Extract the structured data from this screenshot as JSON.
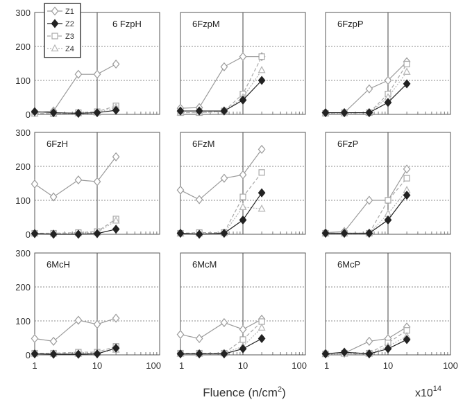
{
  "chart_data": {
    "type": "line",
    "layout": "3x3 small multiples",
    "x_scale": "log",
    "xlim": [
      1,
      100
    ],
    "ylim": [
      0,
      300
    ],
    "x_ticks": [
      "1",
      "10",
      "100"
    ],
    "y_ticks": [
      "0",
      "100",
      "200",
      "300"
    ],
    "xlabel": "Fluence (n/cm2)",
    "xlabel_main": "Fluence (n/cm",
    "xlabel_sup": "2",
    "xlabel_close": ")",
    "x_multiplier_base": "x10",
    "x_multiplier_exp": "14",
    "grid": "dotted horizontal at 100 and 200, solid vertical at 10",
    "legend": {
      "placement": "top-left of first panel",
      "entries": [
        {
          "name": "Z1",
          "marker": "diamond-open",
          "color": "#9a9a9a",
          "dash": ""
        },
        {
          "name": "Z2",
          "marker": "diamond-filled",
          "color": "#222222",
          "dash": ""
        },
        {
          "name": "Z3",
          "marker": "square-open",
          "color": "#a8a8a8",
          "dash": "5,3"
        },
        {
          "name": "Z4",
          "marker": "triangle-open",
          "color": "#b4b4b4",
          "dash": "2,2"
        }
      ]
    },
    "panels": [
      {
        "label": "6 FzpH",
        "series": {
          "Z1": {
            "x": [
              1,
              2,
              5,
              10,
              20
            ],
            "y": [
              5,
              10,
              118,
              118,
              148
            ]
          },
          "Z2": {
            "x": [
              1,
              2,
              5,
              10,
              20
            ],
            "y": [
              8,
              5,
              3,
              5,
              12
            ]
          },
          "Z3": {
            "x": [
              1,
              2,
              5,
              10,
              20
            ],
            "y": [
              3,
              2,
              5,
              8,
              25
            ]
          },
          "Z4": {
            "x": [
              1,
              2,
              5,
              10,
              20
            ],
            "y": [
              2,
              2,
              3,
              5,
              20
            ]
          }
        }
      },
      {
        "label": "6FzpM",
        "series": {
          "Z1": {
            "x": [
              1,
              2,
              5,
              10,
              20
            ],
            "y": [
              18,
              20,
              140,
              170,
              170
            ]
          },
          "Z2": {
            "x": [
              1,
              2,
              5,
              10,
              20
            ],
            "y": [
              10,
              10,
              10,
              42,
              100
            ]
          },
          "Z3": {
            "x": [
              1,
              2,
              5,
              10,
              20
            ],
            "y": [
              5,
              5,
              10,
              60,
              170
            ]
          },
          "Z4": {
            "x": [
              1,
              2,
              5,
              10,
              20
            ],
            "y": [
              5,
              5,
              8,
              50,
              130
            ]
          }
        }
      },
      {
        "label": "6FzpP",
        "series": {
          "Z1": {
            "x": [
              1,
              2,
              5,
              10,
              20
            ],
            "y": [
              5,
              5,
              75,
              100,
              155
            ]
          },
          "Z2": {
            "x": [
              1,
              2,
              5,
              10,
              20
            ],
            "y": [
              5,
              5,
              5,
              35,
              90
            ]
          },
          "Z3": {
            "x": [
              1,
              2,
              5,
              10,
              20
            ],
            "y": [
              3,
              5,
              5,
              60,
              148
            ]
          },
          "Z4": {
            "x": [
              1,
              2,
              5,
              10,
              20
            ],
            "y": [
              3,
              3,
              5,
              50,
              125
            ]
          }
        }
      },
      {
        "label": "6FzH",
        "series": {
          "Z1": {
            "x": [
              1,
              2,
              5,
              10,
              20
            ],
            "y": [
              148,
              110,
              160,
              155,
              228
            ]
          },
          "Z2": {
            "x": [
              1,
              2,
              5,
              10,
              20
            ],
            "y": [
              2,
              0,
              0,
              2,
              15
            ]
          },
          "Z3": {
            "x": [
              1,
              2,
              5,
              10,
              20
            ],
            "y": [
              3,
              3,
              5,
              8,
              45
            ]
          },
          "Z4": {
            "x": [
              1,
              2,
              5,
              10,
              20
            ],
            "y": [
              2,
              2,
              3,
              5,
              40
            ]
          }
        }
      },
      {
        "label": "6FzM",
        "series": {
          "Z1": {
            "x": [
              1,
              2,
              5,
              10,
              20
            ],
            "y": [
              130,
              102,
              165,
              175,
              250
            ]
          },
          "Z2": {
            "x": [
              1,
              2,
              5,
              10,
              20
            ],
            "y": [
              3,
              0,
              3,
              42,
              122
            ]
          },
          "Z3": {
            "x": [
              1,
              2,
              5,
              10,
              20
            ],
            "y": [
              3,
              5,
              5,
              110,
              182
            ]
          },
          "Z4": {
            "x": [
              1,
              2,
              5,
              10,
              20
            ],
            "y": [
              2,
              2,
              3,
              80,
              75
            ]
          }
        }
      },
      {
        "label": "6FzP",
        "series": {
          "Z1": {
            "x": [
              1,
              2,
              5,
              10,
              20
            ],
            "y": [
              5,
              8,
              100,
              100,
              192
            ]
          },
          "Z2": {
            "x": [
              1,
              2,
              5,
              10,
              20
            ],
            "y": [
              3,
              3,
              3,
              42,
              115
            ]
          },
          "Z3": {
            "x": [
              1,
              2,
              5,
              10,
              20
            ],
            "y": [
              3,
              3,
              3,
              100,
              165
            ]
          },
          "Z4": {
            "x": [
              1,
              2,
              5,
              10,
              20
            ],
            "y": [
              2,
              2,
              3,
              60,
              130
            ]
          }
        }
      },
      {
        "label": "6McH",
        "series": {
          "Z1": {
            "x": [
              1,
              2,
              5,
              10,
              20
            ],
            "y": [
              48,
              40,
              102,
              90,
              108
            ]
          },
          "Z2": {
            "x": [
              1,
              2,
              5,
              10,
              20
            ],
            "y": [
              3,
              2,
              2,
              3,
              20
            ]
          },
          "Z3": {
            "x": [
              1,
              2,
              5,
              10,
              20
            ],
            "y": [
              5,
              5,
              8,
              8,
              25
            ]
          },
          "Z4": {
            "x": [
              1,
              2,
              5,
              10,
              20
            ],
            "y": [
              3,
              3,
              3,
              5,
              15
            ]
          }
        }
      },
      {
        "label": "6McM",
        "series": {
          "Z1": {
            "x": [
              1,
              2,
              5,
              10,
              20
            ],
            "y": [
              60,
              48,
              95,
              75,
              105
            ]
          },
          "Z2": {
            "x": [
              1,
              2,
              5,
              10,
              20
            ],
            "y": [
              3,
              3,
              3,
              18,
              48
            ]
          },
          "Z3": {
            "x": [
              1,
              2,
              5,
              10,
              20
            ],
            "y": [
              5,
              5,
              5,
              45,
              98
            ]
          },
          "Z4": {
            "x": [
              1,
              2,
              5,
              10,
              20
            ],
            "y": [
              3,
              3,
              5,
              25,
              80
            ]
          }
        }
      },
      {
        "label": "6McP",
        "series": {
          "Z1": {
            "x": [
              1,
              2,
              5,
              10,
              20
            ],
            "y": [
              5,
              5,
              40,
              48,
              82
            ]
          },
          "Z2": {
            "x": [
              1,
              2,
              5,
              10,
              20
            ],
            "y": [
              3,
              8,
              3,
              18,
              45
            ]
          },
          "Z3": {
            "x": [
              1,
              2,
              5,
              10,
              20
            ],
            "y": [
              3,
              5,
              5,
              35,
              72
            ]
          },
          "Z4": {
            "x": [
              1,
              2,
              5,
              10,
              20
            ],
            "y": [
              2,
              3,
              3,
              25,
              55
            ]
          }
        }
      }
    ]
  }
}
